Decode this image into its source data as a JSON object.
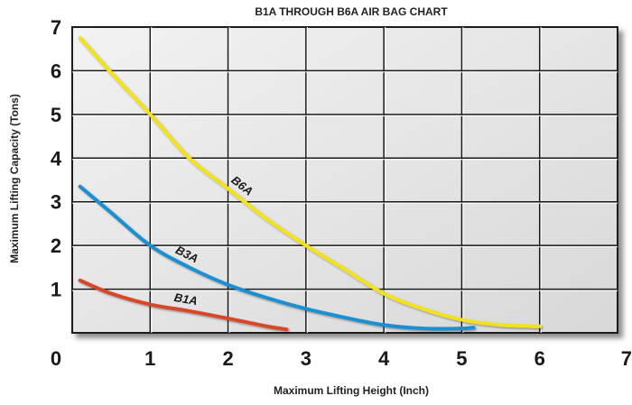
{
  "chart_data": {
    "type": "line",
    "title": "B1A THROUGH B6A AIR BAG CHART",
    "xlabel": "Maximum Lifting Height (Inch)",
    "ylabel": "Maximum Lifting Capacity (Tons)",
    "xlim": [
      0,
      7
    ],
    "ylim": [
      0,
      7
    ],
    "x_ticks": [
      "0",
      "1",
      "2",
      "3",
      "4",
      "5",
      "6",
      "7"
    ],
    "y_ticks": [
      "1",
      "2",
      "3",
      "4",
      "5",
      "6",
      "7"
    ],
    "grid": true,
    "series": [
      {
        "name": "B1A",
        "color": "#d9472b",
        "points": [
          [
            0.1,
            1.2
          ],
          [
            0.5,
            0.9
          ],
          [
            1.0,
            0.65
          ],
          [
            1.5,
            0.5
          ],
          [
            2.0,
            0.33
          ],
          [
            2.5,
            0.15
          ],
          [
            2.75,
            0.08
          ]
        ]
      },
      {
        "name": "B3A",
        "color": "#1a8fd2",
        "points": [
          [
            0.1,
            3.35
          ],
          [
            0.5,
            2.75
          ],
          [
            1.0,
            2.0
          ],
          [
            1.5,
            1.5
          ],
          [
            2.0,
            1.1
          ],
          [
            2.5,
            0.8
          ],
          [
            3.0,
            0.55
          ],
          [
            3.5,
            0.35
          ],
          [
            4.0,
            0.18
          ],
          [
            4.5,
            0.1
          ],
          [
            5.0,
            0.1
          ],
          [
            5.15,
            0.12
          ]
        ]
      },
      {
        "name": "B6A",
        "color": "#f2e21c",
        "points": [
          [
            0.1,
            6.75
          ],
          [
            0.5,
            5.95
          ],
          [
            1.0,
            5.0
          ],
          [
            1.5,
            4.0
          ],
          [
            2.0,
            3.3
          ],
          [
            2.5,
            2.6
          ],
          [
            3.0,
            2.0
          ],
          [
            3.5,
            1.45
          ],
          [
            4.0,
            0.9
          ],
          [
            4.5,
            0.55
          ],
          [
            5.0,
            0.3
          ],
          [
            5.5,
            0.18
          ],
          [
            6.0,
            0.15
          ]
        ]
      }
    ],
    "annotations": [
      {
        "text": "B1A",
        "series": "B1A"
      },
      {
        "text": "B3A",
        "series": "B3A"
      },
      {
        "text": "B6A",
        "series": "B6A"
      }
    ]
  }
}
